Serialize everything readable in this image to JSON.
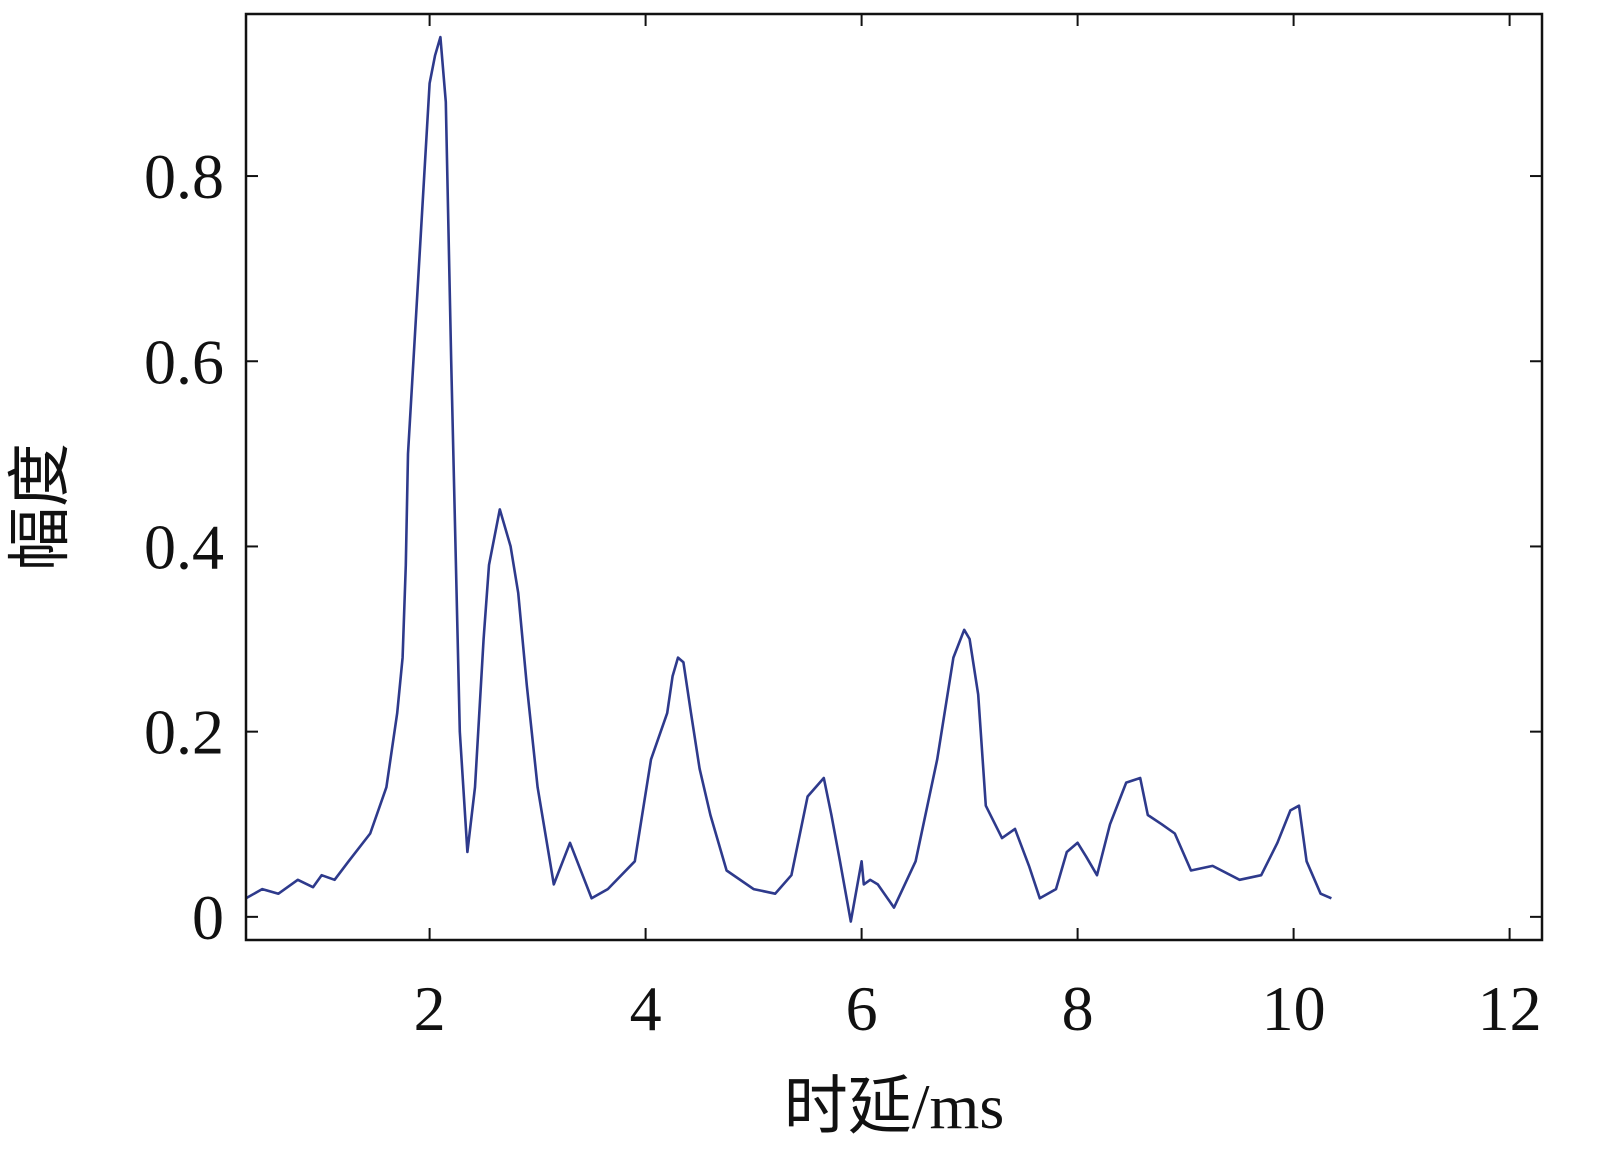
{
  "chart_data": {
    "type": "line",
    "title": "",
    "xlabel": "时延/ms",
    "ylabel": "幅度",
    "xlim": [
      0.3,
      12.3
    ],
    "ylim": [
      -0.025,
      0.975
    ],
    "xticks": [
      2,
      4,
      6,
      8,
      10,
      12
    ],
    "yticks": [
      0,
      0.2,
      0.4,
      0.6,
      0.8
    ],
    "xtick_labels": [
      "2",
      "4",
      "6",
      "8",
      "10",
      "12"
    ],
    "ytick_labels": [
      "0",
      "0.2",
      "0.4",
      "0.6",
      "0.8"
    ],
    "grid": false,
    "legend": "none",
    "colors": {
      "line": "#2e3a8c",
      "axes": "#111111"
    },
    "series": [
      {
        "x": [
          0.3,
          0.45,
          0.6,
          0.78,
          0.92,
          1.0,
          1.12,
          1.25,
          1.45,
          1.6,
          1.7,
          1.75,
          1.78,
          1.8,
          1.85,
          1.9,
          1.95,
          2.0,
          2.05,
          2.1,
          2.15,
          2.2,
          2.28,
          2.35,
          2.42,
          2.5,
          2.55,
          2.65,
          2.75,
          2.82,
          2.9,
          3.0,
          3.15,
          3.3,
          3.5,
          3.65,
          3.9,
          4.05,
          4.2,
          4.25,
          4.3,
          4.35,
          4.42,
          4.5,
          4.6,
          4.75,
          5.0,
          5.2,
          5.35,
          5.5,
          5.65,
          5.72,
          5.8,
          5.9,
          6.0,
          6.02,
          6.08,
          6.15,
          6.3,
          6.5,
          6.7,
          6.85,
          6.95,
          7.0,
          7.08,
          7.15,
          7.3,
          7.42,
          7.55,
          7.65,
          7.8,
          7.9,
          8.0,
          8.08,
          8.18,
          8.3,
          8.45,
          8.58,
          8.65,
          8.78,
          8.9,
          9.05,
          9.25,
          9.5,
          9.7,
          9.85,
          9.97,
          10.05,
          10.12,
          10.25,
          10.35
        ],
        "y": [
          0.02,
          0.03,
          0.025,
          0.04,
          0.032,
          0.045,
          0.04,
          0.06,
          0.09,
          0.14,
          0.22,
          0.28,
          0.38,
          0.5,
          0.6,
          0.7,
          0.8,
          0.9,
          0.93,
          0.95,
          0.88,
          0.6,
          0.2,
          0.07,
          0.14,
          0.3,
          0.38,
          0.44,
          0.4,
          0.35,
          0.25,
          0.14,
          0.035,
          0.08,
          0.02,
          0.03,
          0.06,
          0.17,
          0.22,
          0.26,
          0.28,
          0.275,
          0.22,
          0.16,
          0.11,
          0.05,
          0.03,
          0.025,
          0.045,
          0.13,
          0.15,
          0.11,
          0.06,
          -0.005,
          0.06,
          0.035,
          0.04,
          0.035,
          0.01,
          0.06,
          0.17,
          0.28,
          0.31,
          0.3,
          0.24,
          0.12,
          0.085,
          0.095,
          0.055,
          0.02,
          0.03,
          0.07,
          0.08,
          0.065,
          0.045,
          0.1,
          0.145,
          0.15,
          0.11,
          0.1,
          0.09,
          0.05,
          0.055,
          0.04,
          0.045,
          0.08,
          0.115,
          0.12,
          0.06,
          0.025,
          0.02
        ]
      }
    ]
  }
}
